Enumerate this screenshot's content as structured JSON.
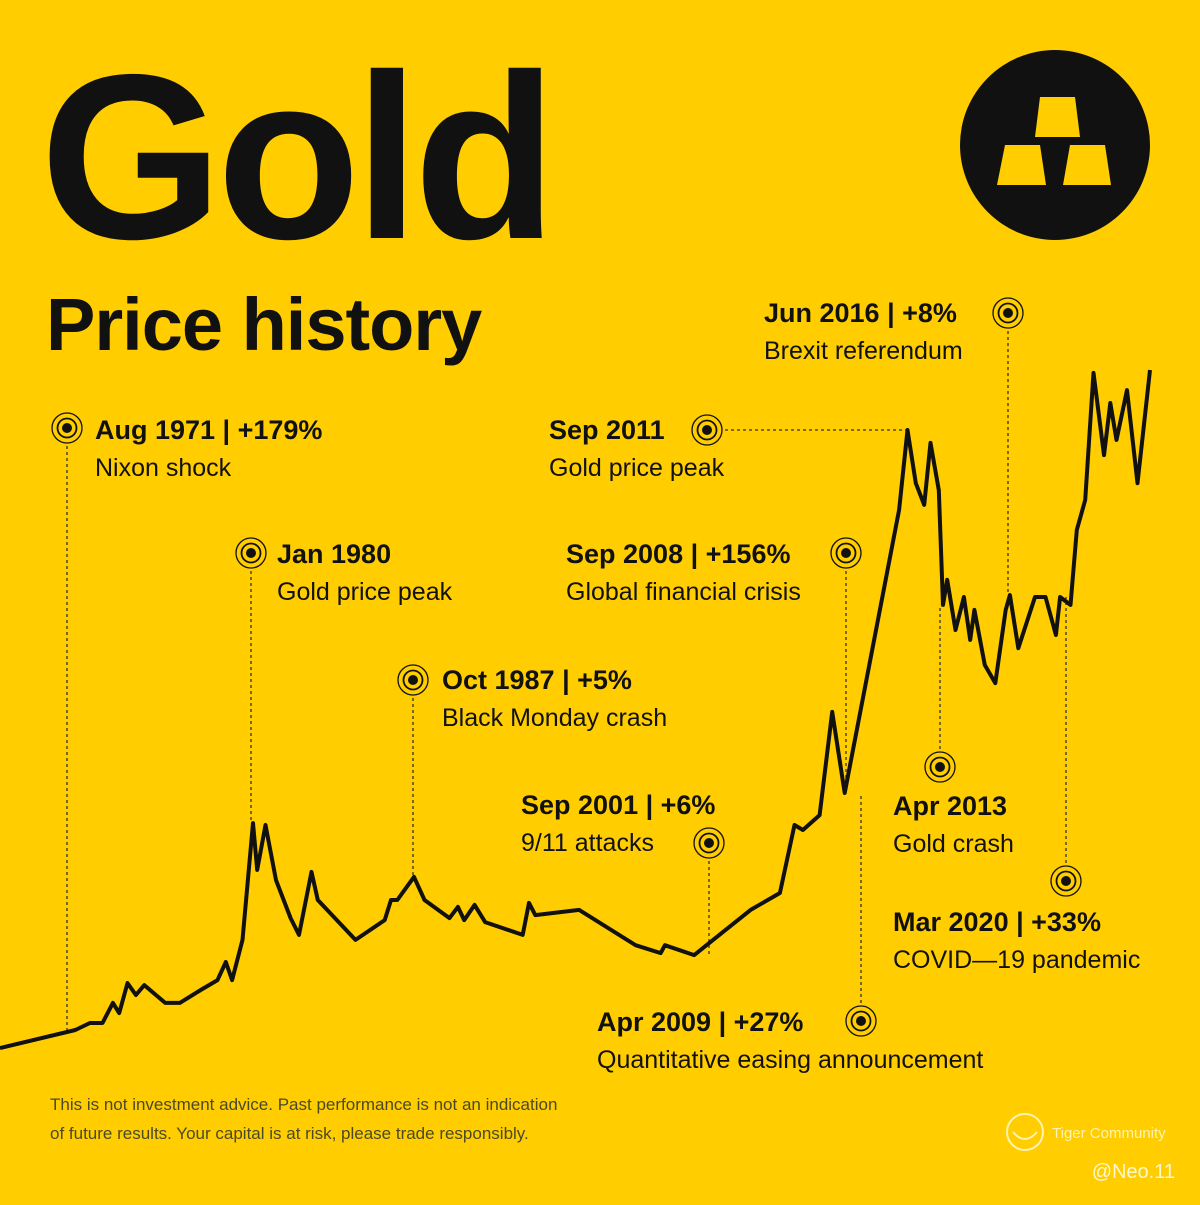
{
  "chart_data": {
    "type": "line",
    "title": "Gold",
    "subtitle": "Price history",
    "x": [
      1968.0,
      1971.6,
      1972.3,
      1972.9,
      1973.4,
      1973.7,
      1974.1,
      1974.5,
      1974.9,
      1975.9,
      1976.6,
      1977.6,
      1978.4,
      1978.8,
      1979.1,
      1979.6,
      1980.1,
      1980.3,
      1980.7,
      1981.2,
      1981.9,
      1982.3,
      1982.9,
      1983.2,
      1985.0,
      1986.4,
      1986.7,
      1987.0,
      1987.8,
      1988.3,
      1989.5,
      1989.9,
      1990.2,
      1990.7,
      1991.2,
      1993.0,
      1993.3,
      1993.6,
      1995.7,
      1998.4,
      1999.6,
      1999.8,
      2001.2,
      2002.4,
      2003.9,
      2005.3,
      2006.0,
      2006.4,
      2007.2,
      2007.8,
      2008.4,
      2011.0,
      2011.4,
      2011.8,
      2012.2,
      2012.5,
      2012.9,
      2013.1,
      2013.3,
      2013.7,
      2014.1,
      2014.4,
      2014.6,
      2015.1,
      2015.6,
      2016.1,
      2016.3,
      2016.7,
      2017.5,
      2018.0,
      2018.5,
      2018.7,
      2019.2,
      2019.5,
      2019.9,
      2020.3,
      2020.8,
      2021.1,
      2021.4,
      2021.9,
      2022.4,
      2023.0
    ],
    "series": [
      {
        "color": "#111111",
        "values": [
          36,
          91,
          112,
          112,
          173,
          142,
          233,
          197,
          227,
          173,
          173,
          212,
          242,
          297,
          242,
          364,
          718,
          576,
          712,
          545,
          430,
          379,
          570,
          485,
          364,
          424,
          485,
          485,
          555,
          485,
          430,
          464,
          424,
          470,
          418,
          379,
          476,
          439,
          455,
          348,
          324,
          348,
          318,
          379,
          455,
          506,
          712,
          697,
          742,
          1055,
          809,
          1667,
          1909,
          1748,
          1682,
          1870,
          1727,
          1379,
          1455,
          1303,
          1403,
          1273,
          1364,
          1197,
          1142,
          1364,
          1409,
          1248,
          1403,
          1403,
          1288,
          1403,
          1379,
          1606,
          1697,
          2082,
          1833,
          1991,
          1879,
          2030,
          1748,
          2091
        ]
      }
    ],
    "xlim": [
      1968,
      2023
    ],
    "ylim": [
      0,
      2000
    ],
    "annotations": [
      {
        "label": "Aug 1971 | +179%",
        "text": "Nixon shock"
      },
      {
        "label": "Jan 1980",
        "text": "Gold price peak"
      },
      {
        "label": "Oct 1987 | +5%",
        "text": "Black Monday crash"
      },
      {
        "label": "Sep 2001 | +6%",
        "text": "9/11 attacks"
      },
      {
        "label": "Sep 2011",
        "text": "Gold price peak"
      },
      {
        "label": "Sep 2008 | +156%",
        "text": "Global financial crisis"
      },
      {
        "label": "Jun 2016 | +8%",
        "text": "Brexit referendum"
      },
      {
        "label": "Apr 2013",
        "text": "Gold crash"
      },
      {
        "label": "Apr 2009 | +27%",
        "text": "Quantitative easing announcement"
      },
      {
        "label": "Mar 2020 | +33%",
        "text": "COVID—19 pandemic"
      }
    ],
    "disclaimer": [
      "This is not investment advice. Past performance is not an indication",
      "of future results. Your capital is at risk, please trade responsibly."
    ],
    "watermark": "Tiger Community",
    "credit": "@Neo.11"
  }
}
